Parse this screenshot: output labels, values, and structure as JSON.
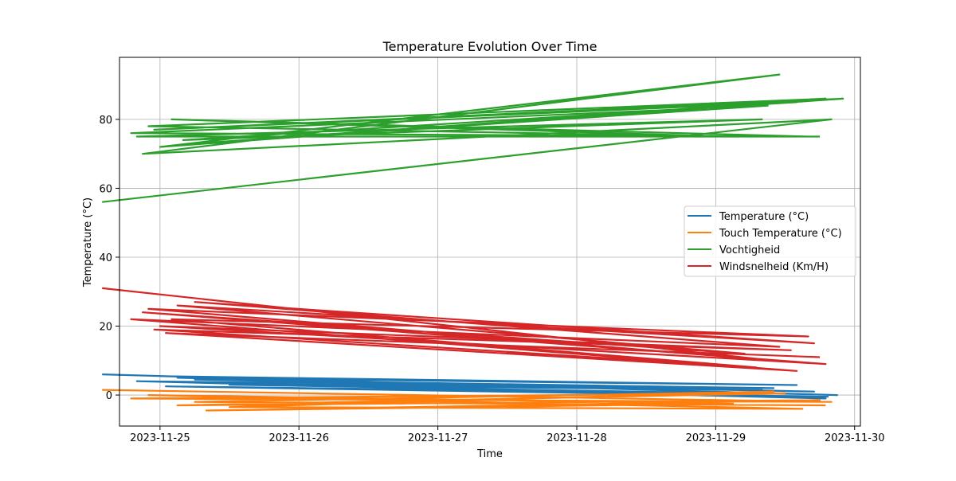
{
  "chart_data": {
    "type": "line",
    "title": "Temperature Evolution Over Time",
    "xlabel": "Time",
    "ylabel": "Temperature (°C)",
    "xlim": [
      "2023-11-24T17:00",
      "2023-11-30T01:00"
    ],
    "ylim": [
      -9,
      98
    ],
    "x_ticks": [
      "2023-11-25",
      "2023-11-26",
      "2023-11-27",
      "2023-11-28",
      "2023-11-29",
      "2023-11-30"
    ],
    "y_ticks": [
      0,
      20,
      40,
      60,
      80
    ],
    "grid": true,
    "legend_position": "center-right",
    "series": [
      {
        "name": "Temperature (°C)",
        "color": "#1f77b4",
        "x": [
          "2023-11-24T14:00",
          "2023-11-29T21:00",
          "2023-11-25T00:00",
          "2023-11-29T14:00",
          "2023-11-25T03:00",
          "2023-11-29T17:00",
          "2023-11-25T06:00",
          "2023-11-29T10:00",
          "2023-11-24T20:00",
          "2023-11-29T19:00",
          "2023-11-25T09:00",
          "2023-11-29T08:00",
          "2023-11-25T12:00",
          "2023-11-29T04:00",
          "2023-11-25T01:00",
          "2023-11-29T19:30"
        ],
        "y": [
          6.0,
          0.0,
          5.5,
          2.9,
          5.0,
          1.0,
          4.5,
          2.0,
          4.0,
          -1.0,
          3.5,
          1.5,
          3.0,
          0.5,
          2.5,
          -0.5
        ]
      },
      {
        "name": "Touch Temperature (°C)",
        "color": "#ff7f0e",
        "x": [
          "2023-11-24T14:00",
          "2023-11-29T20:00",
          "2023-11-24T19:00",
          "2023-11-29T12:00",
          "2023-11-25T03:00",
          "2023-11-29T18:00",
          "2023-11-25T08:00",
          "2023-11-29T03:00",
          "2023-11-24T22:00",
          "2023-11-29T15:00",
          "2023-11-25T12:00",
          "2023-11-29T10:00",
          "2023-11-25T06:00",
          "2023-11-29T19:00"
        ],
        "y": [
          1.5,
          -2.0,
          -1.0,
          0.5,
          -3.0,
          -1.5,
          -4.5,
          -2.5,
          0.0,
          -4.0,
          -3.5,
          1.0,
          -2.0,
          -3.0
        ]
      },
      {
        "name": "Vochtigheid",
        "color": "#2ca02c",
        "x": [
          "2023-11-24T14:00",
          "2023-11-29T20:00",
          "2023-11-24T21:00",
          "2023-11-29T11:00",
          "2023-11-25T00:00",
          "2023-11-29T19:00",
          "2023-11-24T22:00",
          "2023-11-29T02:00",
          "2023-11-25T02:00",
          "2023-11-29T16:00",
          "2023-11-24T19:00",
          "2023-11-29T09:00",
          "2023-11-25T06:00",
          "2023-11-29T22:00",
          "2023-11-24T23:00",
          "2023-11-29T14:00",
          "2023-11-25T04:00",
          "2023-11-29T08:00",
          "2023-11-24T20:00",
          "2023-11-29T18:00"
        ],
        "y": [
          56,
          80,
          70,
          93,
          72,
          86,
          78,
          75,
          80,
          75,
          76,
          84,
          73,
          86,
          77,
          85,
          74,
          80,
          75,
          75
        ]
      },
      {
        "name": "Windsnelheid (Km/H)",
        "color": "#d62728",
        "x": [
          "2023-11-24T14:00",
          "2023-11-29T10:00",
          "2023-11-24T22:00",
          "2023-11-29T16:00",
          "2023-11-25T02:00",
          "2023-11-29T07:00",
          "2023-11-24T23:00",
          "2023-11-29T13:00",
          "2023-11-25T00:00",
          "2023-11-29T19:00",
          "2023-11-24T21:00",
          "2023-11-29T05:00",
          "2023-11-25T03:00",
          "2023-11-29T17:00",
          "2023-11-25T06:00",
          "2023-11-29T11:00",
          "2023-11-24T19:00",
          "2023-11-29T14:00",
          "2023-11-25T01:00",
          "2023-11-29T18:00"
        ],
        "y": [
          31,
          10,
          25,
          17,
          22,
          8,
          19,
          13,
          20,
          9,
          24,
          12,
          26,
          15,
          27,
          14,
          22,
          7,
          18,
          11
        ]
      }
    ]
  }
}
